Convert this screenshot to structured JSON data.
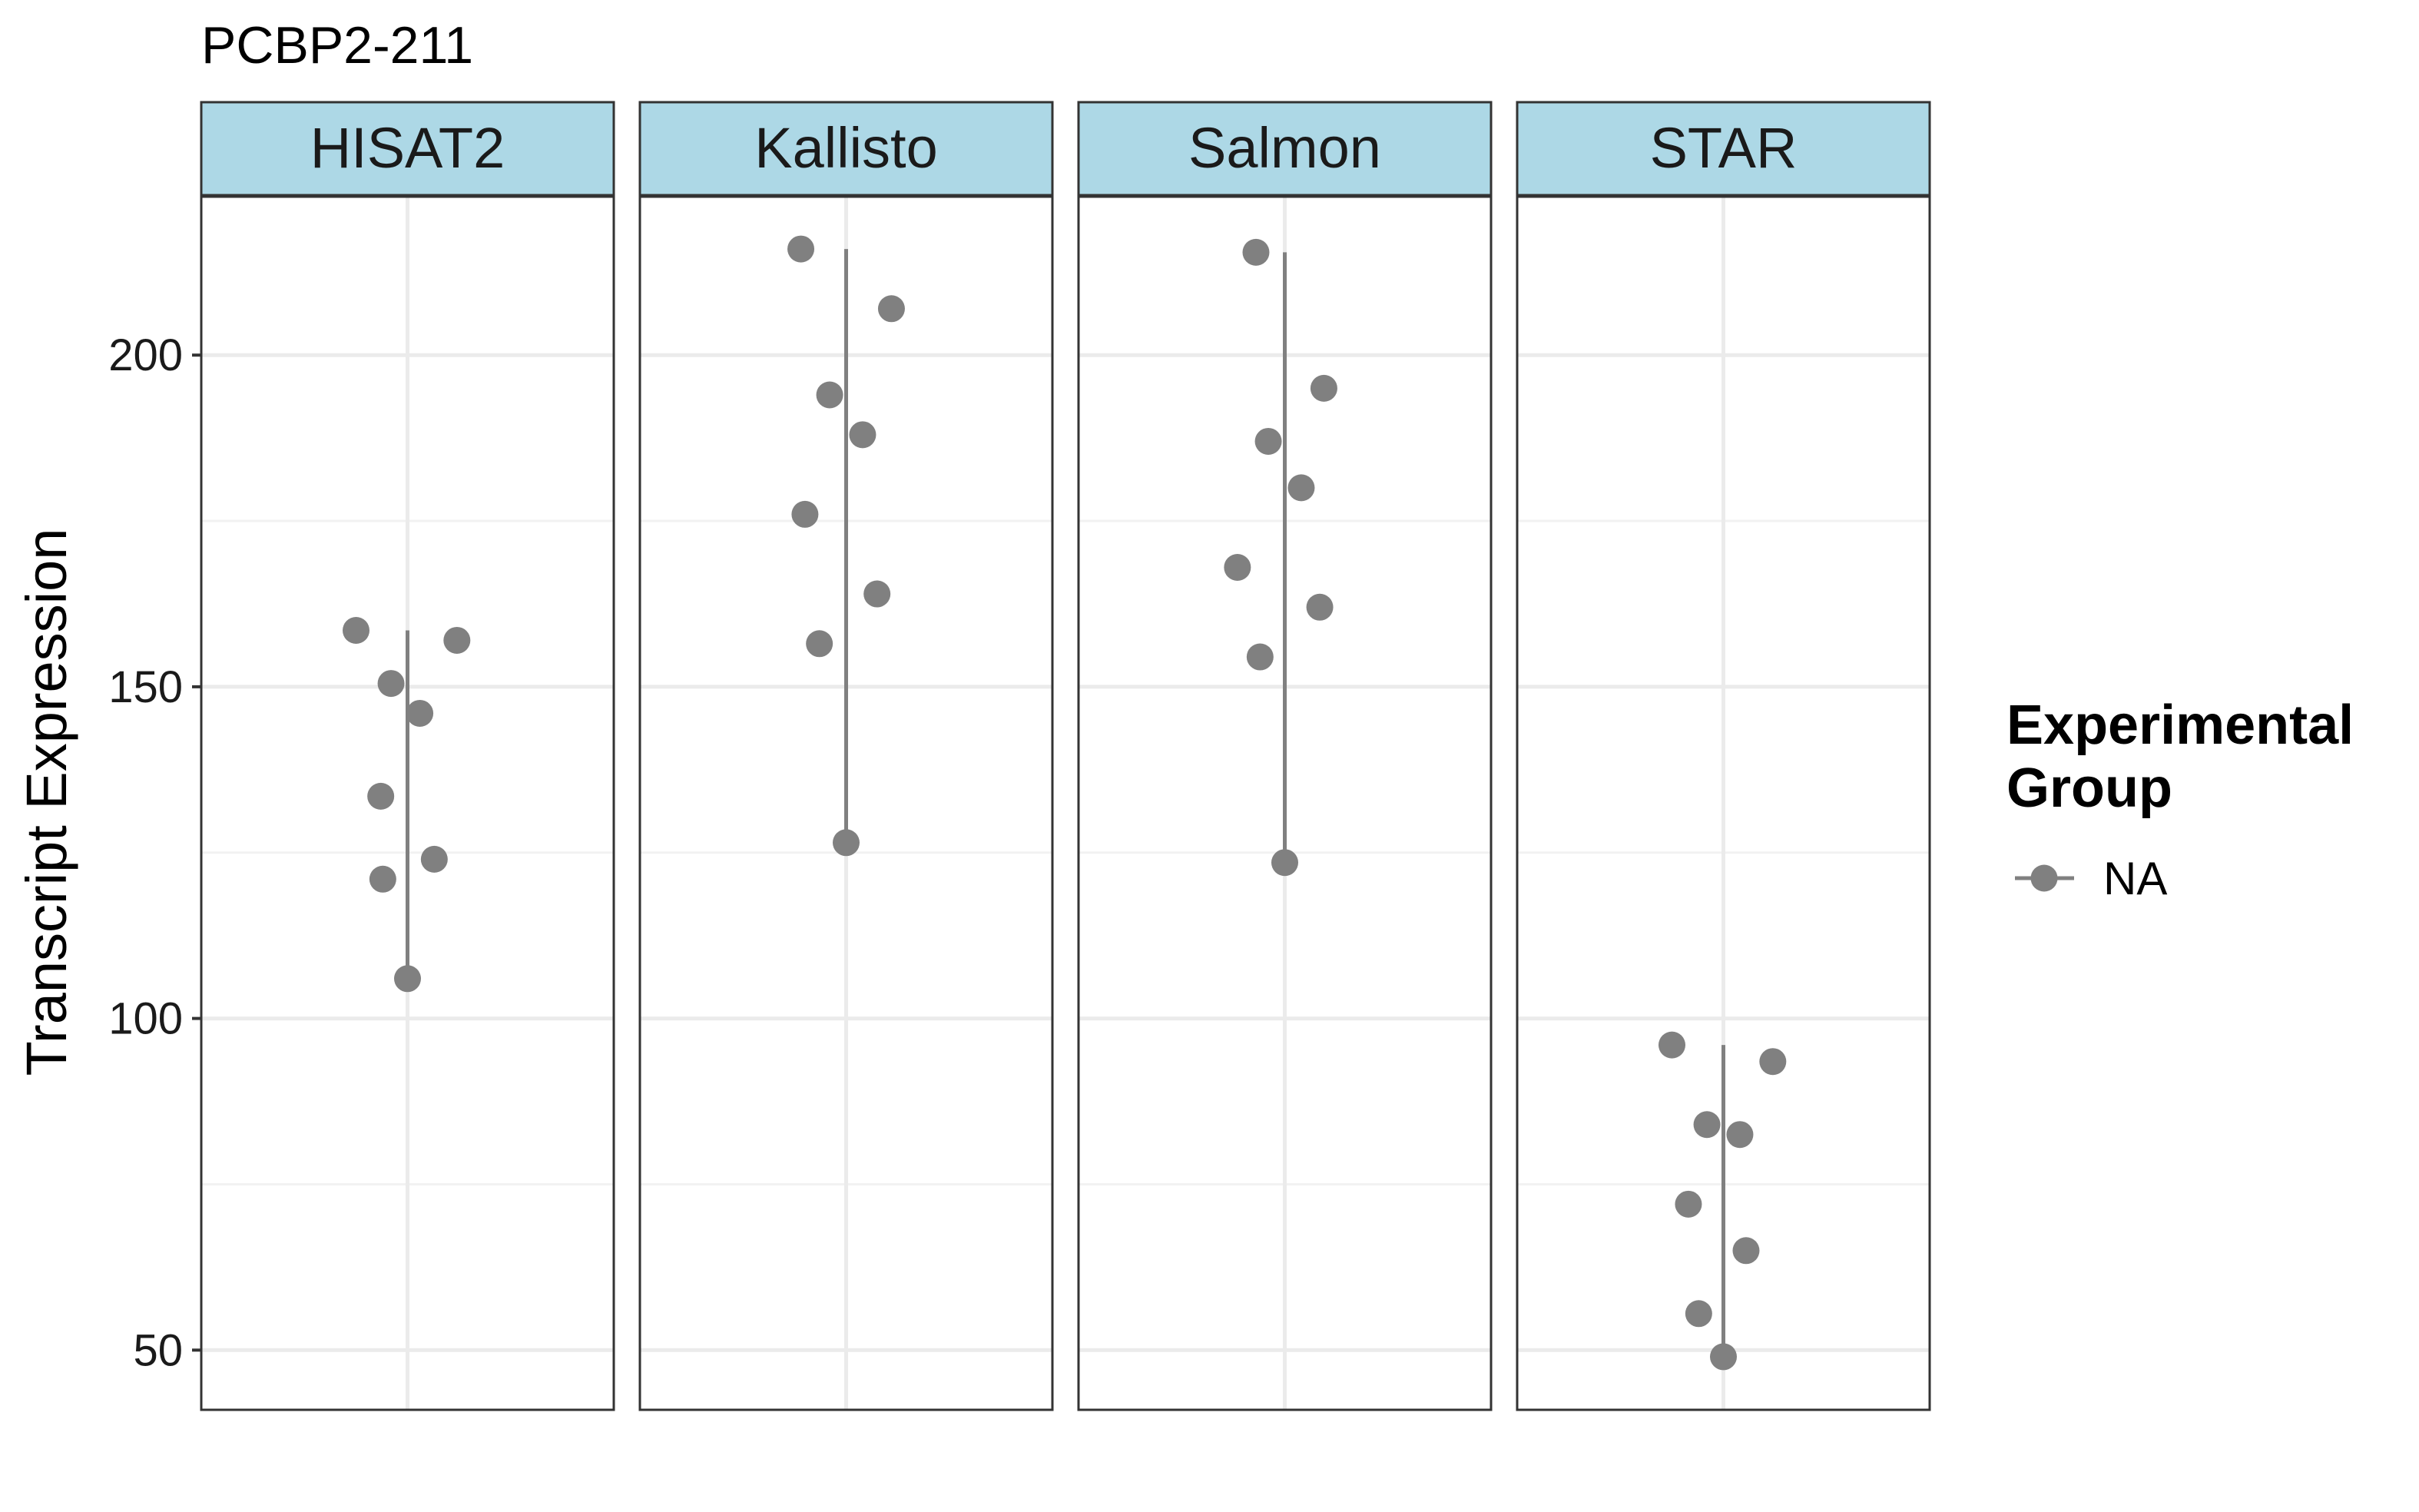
{
  "chart_data": {
    "type": "scatter",
    "title": "PCBP2-211",
    "ylabel": "Transcript Expression",
    "xlabel": "",
    "ylim": [
      41,
      224
    ],
    "y_ticks": [
      50,
      100,
      150,
      200
    ],
    "y_tick_labels": [
      "50",
      "100",
      "150",
      "200"
    ],
    "y_minor_ticks": [
      75,
      125,
      175
    ],
    "grid": true,
    "point_color": "#808080",
    "strip_fill": "#add8e6",
    "legend": {
      "title_lines": [
        "Experimental",
        "Group"
      ],
      "entries": [
        "NA"
      ],
      "placement": "right"
    },
    "panels": [
      {
        "name": "HISAT2",
        "points": [
          {
            "jitter": -0.25,
            "y": 158.5
          },
          {
            "jitter": 0.24,
            "y": 157.0
          },
          {
            "jitter": -0.08,
            "y": 150.5
          },
          {
            "jitter": 0.06,
            "y": 146.0
          },
          {
            "jitter": -0.13,
            "y": 133.5
          },
          {
            "jitter": 0.13,
            "y": 124.0
          },
          {
            "jitter": -0.12,
            "y": 121.0
          },
          {
            "jitter": 0.0,
            "y": 106.0
          }
        ],
        "range": [
          106.0,
          158.5
        ]
      },
      {
        "name": "Kallisto",
        "points": [
          {
            "jitter": -0.22,
            "y": 216.0
          },
          {
            "jitter": 0.22,
            "y": 207.0
          },
          {
            "jitter": -0.08,
            "y": 194.0
          },
          {
            "jitter": 0.08,
            "y": 188.0
          },
          {
            "jitter": -0.2,
            "y": 176.0
          },
          {
            "jitter": 0.15,
            "y": 164.0
          },
          {
            "jitter": -0.13,
            "y": 156.5
          },
          {
            "jitter": 0.0,
            "y": 126.5
          }
        ],
        "range": [
          126.5,
          216.0
        ]
      },
      {
        "name": "Salmon",
        "points": [
          {
            "jitter": -0.14,
            "y": 215.5
          },
          {
            "jitter": 0.19,
            "y": 195.0
          },
          {
            "jitter": -0.08,
            "y": 187.0
          },
          {
            "jitter": 0.08,
            "y": 180.0
          },
          {
            "jitter": -0.23,
            "y": 168.0
          },
          {
            "jitter": 0.17,
            "y": 162.0
          },
          {
            "jitter": -0.12,
            "y": 154.5
          },
          {
            "jitter": 0.0,
            "y": 123.5
          }
        ],
        "range": [
          123.5,
          215.5
        ]
      },
      {
        "name": "STAR",
        "points": [
          {
            "jitter": -0.25,
            "y": 96.0
          },
          {
            "jitter": 0.24,
            "y": 93.5
          },
          {
            "jitter": -0.08,
            "y": 84.0
          },
          {
            "jitter": 0.08,
            "y": 82.5
          },
          {
            "jitter": -0.17,
            "y": 72.0
          },
          {
            "jitter": 0.11,
            "y": 65.0
          },
          {
            "jitter": -0.12,
            "y": 55.5
          },
          {
            "jitter": 0.0,
            "y": 49.0
          }
        ],
        "range": [
          49.0,
          96.0
        ]
      }
    ]
  }
}
